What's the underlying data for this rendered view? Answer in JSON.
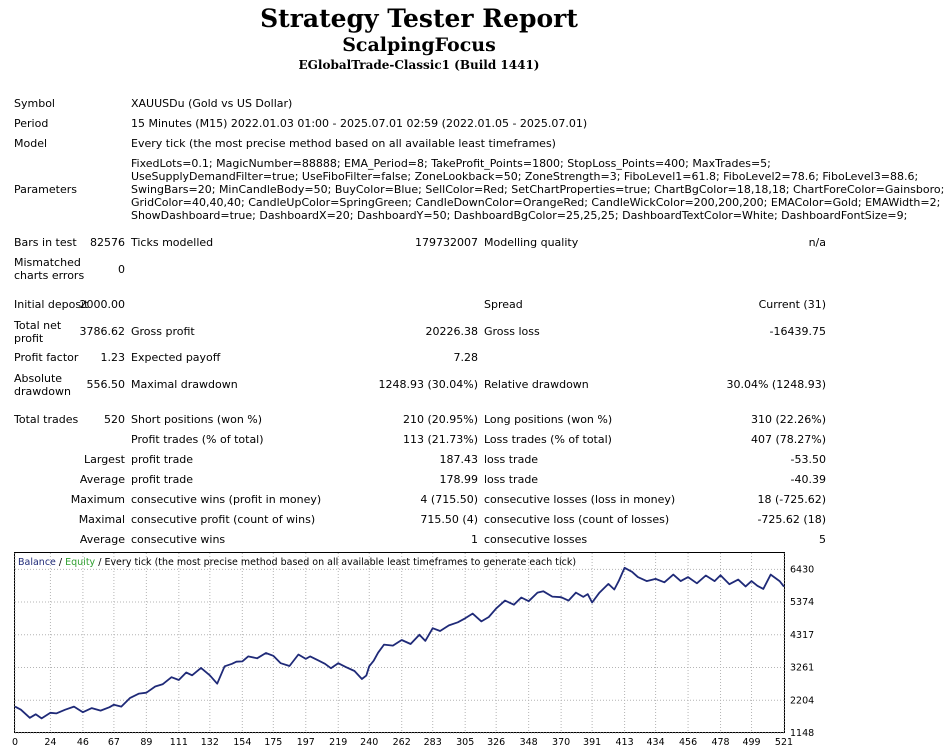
{
  "report": {
    "title": "Strategy Tester Report",
    "expert": "ScalpingFocus",
    "server": "EGlobalTrade-Classic1 (Build 1441)"
  },
  "settings": {
    "symbol_label": "Symbol",
    "symbol": "XAUUSDu (Gold vs US Dollar)",
    "period_label": "Period",
    "period": "15 Minutes (M15) 2022.01.03 01:00 - 2025.07.01 02:59 (2022.01.05 - 2025.07.01)",
    "model_label": "Model",
    "model": "Every tick (the most precise method based on all available least timeframes)",
    "parameters_label": "Parameters",
    "parameters": [
      "FixedLots=0.1; MagicNumber=88888; EMA_Period=8; TakeProfit_Points=1800; StopLoss_Points=400; MaxTrades=5;",
      "UseSupplyDemandFilter=true; UseFiboFilter=false; ZoneLookback=50; ZoneStrength=3; FiboLevel1=61.8; FiboLevel2=78.6; FiboLevel3=88.6;",
      "SwingBars=20; MinCandleBody=50; BuyColor=Blue; SellColor=Red; SetChartProperties=true; ChartBgColor=18,18,18; ChartForeColor=Gainsboro;",
      "GridColor=40,40,40; CandleUpColor=SpringGreen; CandleDownColor=OrangeRed; CandleWickColor=200,200,200; EMAColor=Gold; EMAWidth=2;",
      "ShowDashboard=true; DashboardX=20; DashboardY=50; DashboardBgColor=25,25,25; DashboardTextColor=White; DashboardFontSize=9;"
    ]
  },
  "test": {
    "bars_label": "Bars in test",
    "bars": "82576",
    "ticks_label": "Ticks modelled",
    "ticks": "179732007",
    "quality_label": "Modelling quality",
    "quality": "n/a",
    "mismatched_label_1": "Mismatched",
    "mismatched_label_2": "charts errors",
    "mismatched": "0"
  },
  "results": {
    "initial_deposit_label": "Initial deposit",
    "initial_deposit": "2000.00",
    "spread_label": "Spread",
    "spread": "Current (31)",
    "net_profit_label_1": "Total net",
    "net_profit_label_2": "profit",
    "net_profit": "3786.62",
    "gross_profit_label": "Gross profit",
    "gross_profit": "20226.38",
    "gross_loss_label": "Gross loss",
    "gross_loss": "-16439.75",
    "profit_factor_label": "Profit factor",
    "profit_factor": "1.23",
    "expected_payoff_label": "Expected payoff",
    "expected_payoff": "7.28",
    "abs_dd_label_1": "Absolute",
    "abs_dd_label_2": "drawdown",
    "abs_dd": "556.50",
    "max_dd_label": "Maximal drawdown",
    "max_dd": "1248.93 (30.04%)",
    "rel_dd_label": "Relative drawdown",
    "rel_dd": "30.04% (1248.93)"
  },
  "trades": {
    "total_label": "Total trades",
    "total": "520",
    "short_label": "Short positions (won %)",
    "short": "210 (20.95%)",
    "long_label": "Long positions (won %)",
    "long": "310 (22.26%)",
    "profit_trades_label": "Profit trades (% of total)",
    "profit_trades": "113 (21.73%)",
    "loss_trades_label": "Loss trades (% of total)",
    "loss_trades": "407 (78.27%)",
    "largest_label": "Largest",
    "largest_profit_label": "profit trade",
    "largest_profit": "187.43",
    "largest_loss_label": "loss trade",
    "largest_loss": "-53.50",
    "average_label": "Average",
    "average_profit_label": "profit trade",
    "average_profit": "178.99",
    "average_loss_label": "loss trade",
    "average_loss": "-40.39",
    "maximum_label": "Maximum",
    "max_cons_wins_label": "consecutive wins (profit in money)",
    "max_cons_wins": "4 (715.50)",
    "max_cons_losses_label": "consecutive losses (loss in money)",
    "max_cons_losses": "18 (-725.62)",
    "maximal_label": "Maximal",
    "maximal_cons_profit_label": "consecutive profit (count of wins)",
    "maximal_cons_profit": "715.50 (4)",
    "maximal_cons_loss_label": "consecutive loss (count of losses)",
    "maximal_cons_loss": "-725.62 (18)",
    "average2_label": "Average",
    "avg_cons_wins_label": "consecutive wins",
    "avg_cons_wins": "1",
    "avg_cons_losses_label": "consecutive losses",
    "avg_cons_losses": "5"
  },
  "colors": {
    "balance": "#1f2a78",
    "equity": "#2e9e2e",
    "grid": "#b4b4b4"
  },
  "chart_data": {
    "type": "line",
    "legend": {
      "balance": "Balance",
      "sep1": " / ",
      "equity": "Equity",
      "sep2": " / ",
      "text": "Every tick (the most precise method based on all available least timeframes to generate each tick)"
    },
    "x_ticks": [
      0,
      24,
      46,
      67,
      89,
      111,
      132,
      154,
      175,
      197,
      219,
      240,
      262,
      283,
      305,
      326,
      348,
      370,
      391,
      413,
      434,
      456,
      478,
      499,
      521
    ],
    "y_ticks": [
      1148,
      2204,
      3261,
      4317,
      5374,
      6430
    ],
    "xlim": [
      0,
      521
    ],
    "ylim": [
      1148,
      6957
    ],
    "series": [
      {
        "name": "Balance",
        "x": [
          0,
          4,
          10,
          14,
          18,
          24,
          28,
          34,
          40,
          46,
          52,
          58,
          64,
          67,
          72,
          78,
          84,
          89,
          95,
          100,
          106,
          111,
          116,
          120,
          126,
          132,
          137,
          142,
          147,
          150,
          154,
          158,
          164,
          170,
          175,
          180,
          186,
          192,
          197,
          200,
          205,
          210,
          214,
          219,
          224,
          230,
          235,
          238,
          240,
          243,
          246,
          250,
          256,
          262,
          268,
          274,
          278,
          283,
          288,
          294,
          300,
          305,
          310,
          316,
          321,
          326,
          332,
          338,
          343,
          348,
          354,
          358,
          364,
          370,
          375,
          380,
          385,
          388,
          391,
          396,
          402,
          406,
          409,
          413,
          418,
          422,
          428,
          434,
          440,
          446,
          451,
          456,
          462,
          468,
          474,
          478,
          484,
          490,
          495,
          499,
          503,
          507,
          512,
          518,
          521
        ],
        "y": [
          2000,
          1900,
          1640,
          1750,
          1620,
          1800,
          1780,
          1900,
          2000,
          1820,
          1950,
          1870,
          1980,
          2060,
          2000,
          2280,
          2420,
          2450,
          2650,
          2720,
          2950,
          2860,
          3100,
          3010,
          3250,
          3010,
          2740,
          3300,
          3380,
          3450,
          3460,
          3620,
          3560,
          3730,
          3640,
          3400,
          3310,
          3680,
          3540,
          3620,
          3500,
          3380,
          3240,
          3400,
          3280,
          3150,
          2890,
          3000,
          3300,
          3480,
          3740,
          4000,
          3970,
          4150,
          4020,
          4320,
          4120,
          4530,
          4440,
          4620,
          4720,
          4850,
          5000,
          4750,
          4890,
          5170,
          5420,
          5290,
          5520,
          5400,
          5680,
          5720,
          5550,
          5530,
          5420,
          5680,
          5540,
          5630,
          5360,
          5680,
          5960,
          5780,
          6050,
          6480,
          6350,
          6180,
          6050,
          6120,
          6010,
          6260,
          6050,
          6180,
          5980,
          6230,
          6050,
          6240,
          5950,
          6100,
          5880,
          6050,
          5900,
          5800,
          6260,
          6050,
          5870
        ]
      }
    ]
  }
}
